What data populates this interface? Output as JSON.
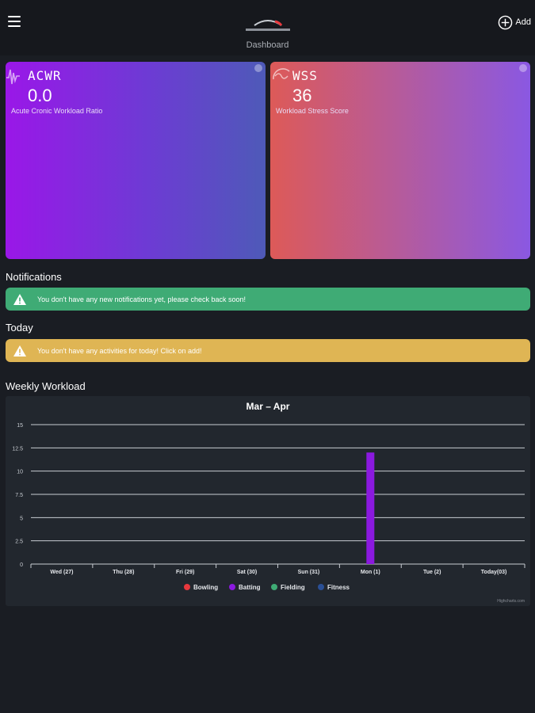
{
  "header": {
    "title": "Dashboard",
    "add_label": "Add"
  },
  "cards": [
    {
      "abbr": "ACWR",
      "value": "0.0",
      "description": "Acute Cronic Workload Ratio"
    },
    {
      "abbr": "WSS",
      "value": "36",
      "description": "Workload Stress Score"
    }
  ],
  "notifications": {
    "title": "Notifications",
    "message": "You don't have any new notifications yet, please check back soon!"
  },
  "today": {
    "title": "Today",
    "message": "You don't have any activities for today! Click on add!"
  },
  "weekly": {
    "title": "Weekly Workload",
    "credit": "Highcharts.com"
  },
  "colors": {
    "bowling": "#e8383d",
    "batting": "#8b19df",
    "fielding": "#3fab75",
    "fitness": "#2a4f95",
    "notification_green": "#3fab75",
    "today_yellow": "#dfb554"
  },
  "icons": {
    "menu": "hamburger-menu-icon",
    "add": "plus-circle-icon",
    "warning": "warning-triangle-icon",
    "acwr": "waveform-icon",
    "wss": "gauge-icon",
    "info": "info-icon"
  },
  "chart_data": {
    "type": "bar",
    "title": "Mar – Apr",
    "categories": [
      "Wed (27)",
      "Thu (28)",
      "Fri (29)",
      "Sat (30)",
      "Sun (31)",
      "Mon (1)",
      "Tue (2)",
      "Today(03)"
    ],
    "ylim": [
      0,
      15
    ],
    "yticks": [
      "0",
      "2.5",
      "5",
      "7.5",
      "10",
      "12.5",
      "15"
    ],
    "grid": true,
    "legend_position": "bottom",
    "series": [
      {
        "name": "Bowling",
        "color": "#e8383d",
        "values": [
          0,
          0,
          0,
          0,
          0,
          0,
          0,
          0
        ]
      },
      {
        "name": "Batting",
        "color": "#8b19df",
        "values": [
          0,
          0,
          0,
          0,
          0,
          12,
          0,
          0
        ]
      },
      {
        "name": "Fielding",
        "color": "#3fab75",
        "values": [
          0,
          0,
          0,
          0,
          0,
          0,
          0,
          0
        ]
      },
      {
        "name": "Fitness",
        "color": "#2a4f95",
        "values": [
          0,
          0,
          0,
          0,
          0,
          0,
          0,
          0
        ]
      }
    ]
  }
}
